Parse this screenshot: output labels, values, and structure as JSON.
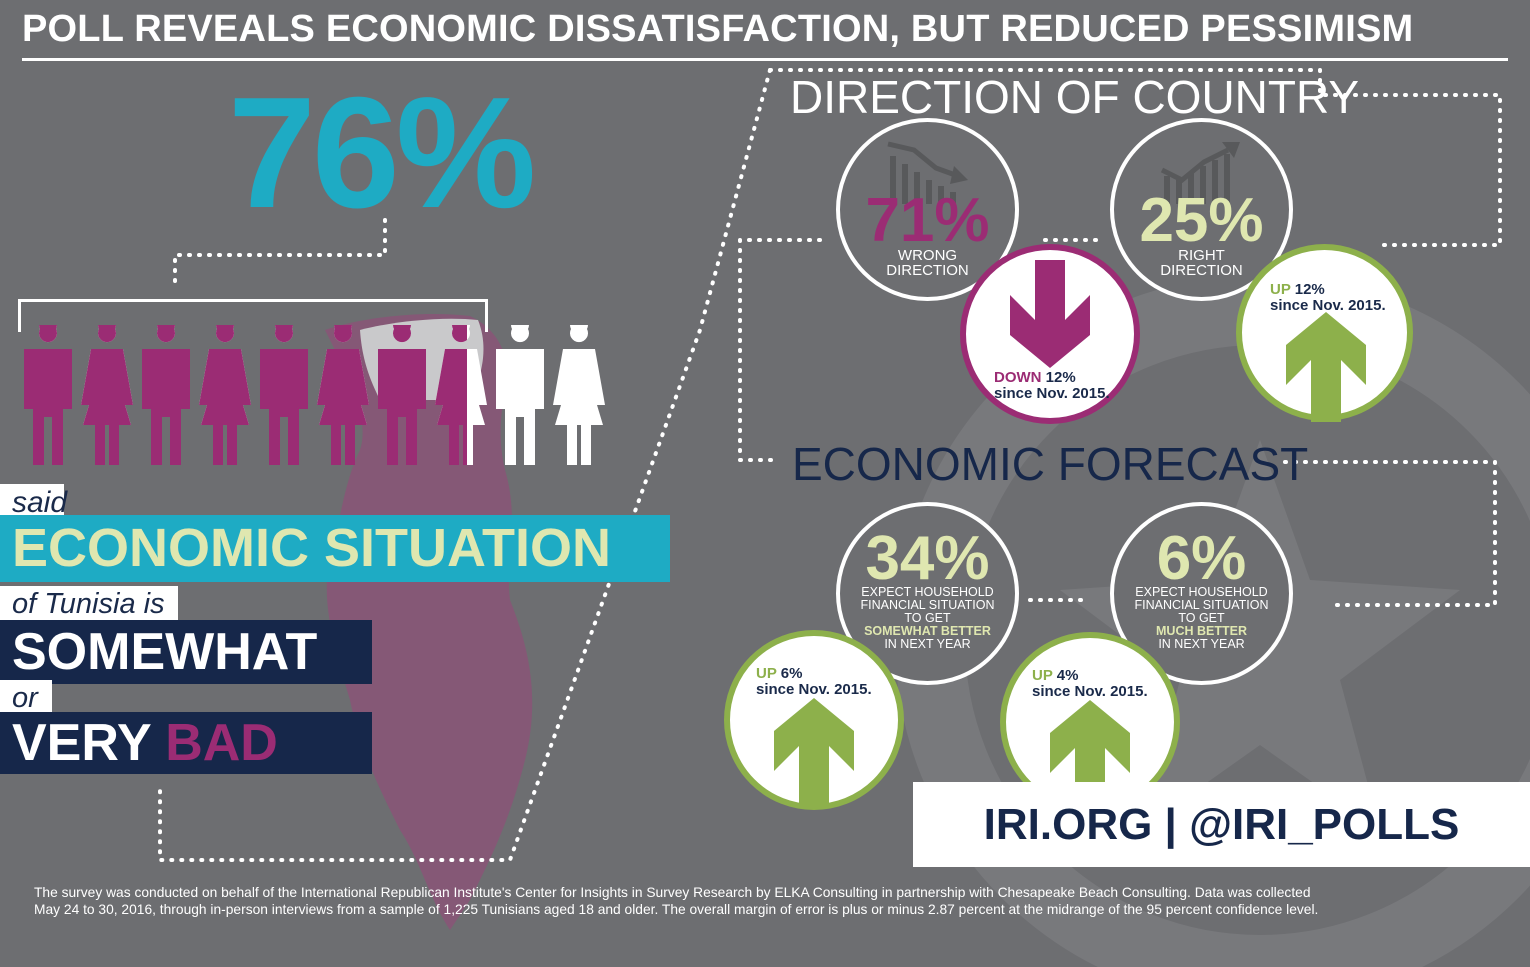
{
  "title": "POLL REVEALS ECONOMIC DISSATISFACTION, BUT REDUCED PESSIMISM",
  "headline_stat": {
    "value": "76%",
    "said": "said",
    "economic_situation": "ECONOMIC SITUATION",
    "of_tunisia": "of Tunisia is",
    "somewhat": "SOMEWHAT",
    "or": "or",
    "very": "VERY",
    "bad": "BAD"
  },
  "people_icons": {
    "total": 10,
    "filled": 7.6,
    "filled_color": "#9b2c74",
    "empty_color": "#ffffff"
  },
  "direction": {
    "heading": "DIRECTION OF COUNTRY",
    "wrong": {
      "value": "71%",
      "label_1": "WRONG",
      "label_2": "DIRECTION",
      "change_word": "DOWN",
      "change_value": "12%",
      "since": "since Nov. 2015."
    },
    "right": {
      "value": "25%",
      "label_1": "RIGHT",
      "label_2": "DIRECTION",
      "change_word": "UP",
      "change_value": "12%",
      "since": "since Nov. 2015."
    }
  },
  "forecast": {
    "heading": "ECONOMIC FORECAST",
    "somewhat": {
      "value": "34%",
      "line_1": "EXPECT HOUSEHOLD",
      "line_2": "FINANCIAL SITUATION",
      "line_3": "TO GET",
      "highlight": "SOMEWHAT BETTER",
      "line_5": "IN NEXT YEAR",
      "change_word": "UP",
      "change_value": "6%",
      "since": "since Nov. 2015."
    },
    "much": {
      "value": "6%",
      "line_1": "EXPECT HOUSEHOLD",
      "line_2": "FINANCIAL SITUATION",
      "line_3": "TO GET",
      "highlight": "MUCH BETTER",
      "line_5": "IN NEXT YEAR",
      "change_word": "UP",
      "change_value": "4%",
      "since": "since Nov. 2015."
    }
  },
  "footer_handle": "IRI.ORG | @IRI_POLLS",
  "footnote": "The survey was conducted on behalf of the International Republican Institute's Center for Insights in Survey Research by ELKA Consulting in partnership with Chesapeake Beach Consulting. Data was collected May 24 to 30, 2016, through in-person interviews from a sample of 1,225 Tunisians aged 18 and older. The overall margin of error is plus or minus 2.87 percent at the midrange of the 95 percent confidence level.",
  "colors": {
    "background": "#6d6e71",
    "teal": "#1eabc4",
    "purple": "#9b2c74",
    "green": "#8db04b",
    "navy": "#16274a",
    "cream": "#dfe7b0"
  }
}
